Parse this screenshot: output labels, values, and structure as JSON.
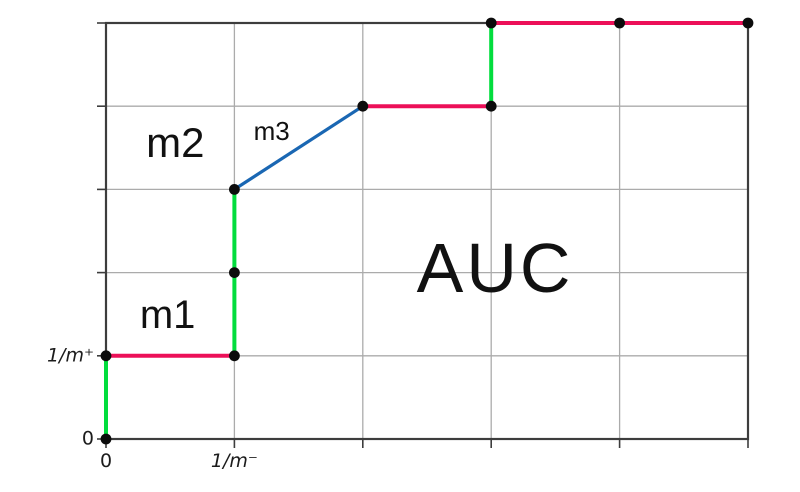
{
  "chart_data": {
    "type": "step",
    "title": "",
    "description": "ROC step-curve construction showing per-example steps m1, m2, m3 and the AUC region",
    "xlim": [
      0,
      5
    ],
    "ylim": [
      0,
      5
    ],
    "grid": true,
    "legend": null,
    "x_ticks": [
      {
        "x": 0,
        "label": "0",
        "math": false
      },
      {
        "x": 1,
        "label": "1/m⁻",
        "math": true
      }
    ],
    "y_ticks": [
      {
        "y": 0,
        "label": "0",
        "math": false
      },
      {
        "y": 1,
        "label": "1/m⁺",
        "math": true
      }
    ],
    "segments": [
      {
        "from": [
          0,
          0
        ],
        "to": [
          0,
          1
        ],
        "kind": "vertical"
      },
      {
        "from": [
          0,
          1
        ],
        "to": [
          1,
          1
        ],
        "kind": "horizontal"
      },
      {
        "from": [
          1,
          1
        ],
        "to": [
          1,
          3
        ],
        "kind": "vertical"
      },
      {
        "from": [
          1,
          3
        ],
        "to": [
          2,
          4
        ],
        "kind": "diagonal"
      },
      {
        "from": [
          2,
          4
        ],
        "to": [
          3,
          4
        ],
        "kind": "horizontal"
      },
      {
        "from": [
          3,
          4
        ],
        "to": [
          3,
          5
        ],
        "kind": "vertical"
      },
      {
        "from": [
          3,
          5
        ],
        "to": [
          5,
          5
        ],
        "kind": "horizontal"
      }
    ],
    "points": [
      [
        0,
        0
      ],
      [
        0,
        1
      ],
      [
        1,
        1
      ],
      [
        1,
        2
      ],
      [
        1,
        3
      ],
      [
        2,
        4
      ],
      [
        3,
        4
      ],
      [
        3,
        5
      ],
      [
        4,
        5
      ],
      [
        5,
        5
      ]
    ],
    "annotations": [
      {
        "name": "m1",
        "text": "m1",
        "x": 0.48,
        "y": 1.49
      },
      {
        "name": "m2",
        "text": "m2",
        "x": 0.54,
        "y": 3.56
      },
      {
        "name": "m3",
        "text": "m3",
        "x": 1.29,
        "y": 3.7
      },
      {
        "name": "auc",
        "text": "AUC",
        "x": 3.03,
        "y": 2.06
      }
    ],
    "colors": {
      "vertical": "#02dd3d",
      "horizontal": "#ec1058",
      "diagonal": "#1a67b3",
      "point": "#0c0c0c",
      "grid": "#ababab",
      "frame": "#3d3d3d",
      "text": "#111111"
    }
  }
}
